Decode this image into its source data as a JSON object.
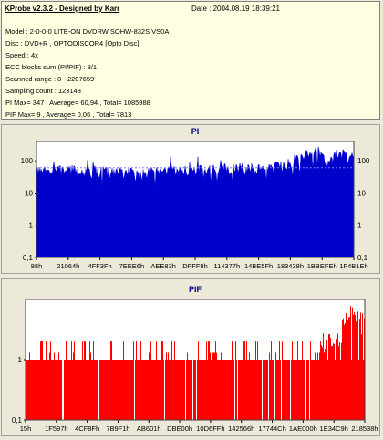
{
  "header": {
    "app_title": "KProbe v2.3.2 - Designed by Karr",
    "date": "Date : 2004.08.19 18:39:21"
  },
  "info_lines": [
    "Model : 2-0-0-0 LITE-ON DVDRW SOHW-832S  VS0A",
    "Disc : DVD+R ,  OPTODISCOR4 [Opto Disc]",
    "Speed : 4x",
    "ECC blocks sum (PI/PIF) : 8/1",
    "Scanned range : 0 - 2207659",
    "Sampling count : 123143"
  ],
  "stats": {
    "pi": "PI Max= 347 , Average= 60,94 , Total= 1085988",
    "pif": "PIF Max= 9 , Average= 0,06 , Total= 7813"
  },
  "colors": {
    "pi_fill": "#0000cc",
    "pif_fill": "#ff0000",
    "plot_bg": "#ffffff",
    "title_color": "#000080"
  },
  "chart_data": [
    {
      "type": "area",
      "title": "PI",
      "y_scale": "log",
      "ylim": [
        0.1,
        400
      ],
      "yticks": [
        "100",
        "10",
        "1",
        "0,1"
      ],
      "xticks": [
        "88h",
        "21064h",
        "4FF3Fh",
        "7EEE6h",
        "AEE83h",
        "DFFF8h",
        "114377h",
        "14BE5Fh",
        "183438h",
        "1BBEFEh",
        "1F4B1Eh"
      ],
      "reference_line": 60.94,
      "grid": false,
      "x_range": [
        0,
        2207659
      ],
      "profile": {
        "x_fraction": [
          0,
          0.05,
          0.1,
          0.15,
          0.2,
          0.25,
          0.3,
          0.33,
          0.36,
          0.4,
          0.45,
          0.5,
          0.55,
          0.6,
          0.65,
          0.7,
          0.75,
          0.8,
          0.84,
          0.87,
          0.89,
          0.9,
          0.92,
          0.95,
          1
        ],
        "values": [
          45,
          50,
          55,
          45,
          50,
          45,
          45,
          38,
          45,
          50,
          48,
          52,
          55,
          60,
          62,
          58,
          65,
          100,
          150,
          200,
          220,
          130,
          80,
          200,
          120
        ]
      }
    },
    {
      "type": "bar",
      "title": "PIF",
      "y_scale": "log",
      "ylim": [
        0.1,
        10
      ],
      "yticks": [
        "1",
        "0,1"
      ],
      "xticks": [
        "15h",
        "1F597h",
        "4CF8Fh",
        "7B9F1h",
        "AB601h",
        "DBE00h",
        "10D6FFh",
        "142566h",
        "17744Ch",
        "1AE000h",
        "1E34C9h",
        "218538h"
      ],
      "grid": false,
      "x_range": [
        0,
        2207659
      ],
      "profile": {
        "x_fraction": [
          0,
          0.7,
          0.8,
          0.85,
          0.87,
          0.9,
          0.93,
          0.95,
          1
        ],
        "values": [
          1,
          1,
          1,
          1,
          2,
          2,
          3,
          6,
          4
        ]
      }
    }
  ]
}
